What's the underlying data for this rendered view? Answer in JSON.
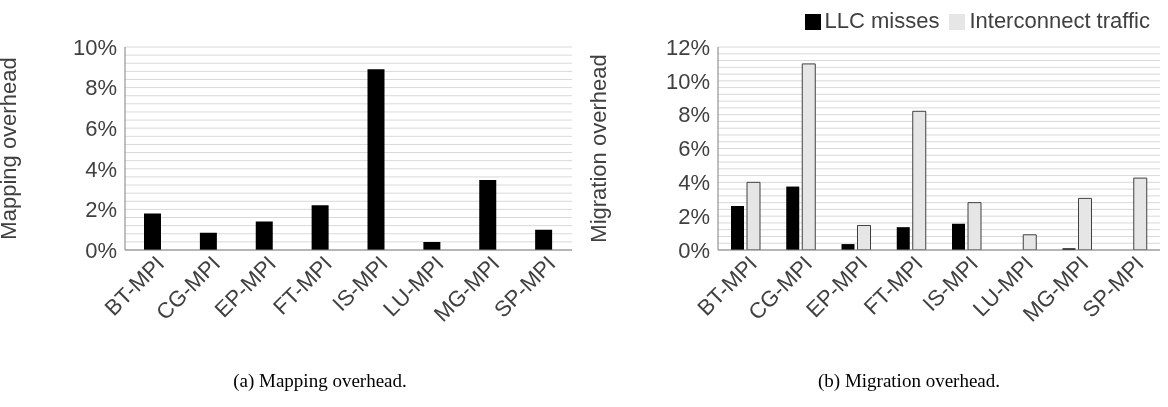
{
  "chart_data": [
    {
      "type": "bar",
      "ylabel": "Mapping overhead",
      "categories": [
        "BT-MPI",
        "CG-MPI",
        "EP-MPI",
        "FT-MPI",
        "IS-MPI",
        "LU-MPI",
        "MG-MPI",
        "SP-MPI"
      ],
      "values": [
        1.8,
        0.85,
        1.4,
        2.2,
        8.9,
        0.4,
        3.45,
        1.0
      ],
      "color": "#000000",
      "ylim": [
        0,
        10
      ],
      "yticks": [
        {
          "value": 0,
          "label": "0%"
        },
        {
          "value": 0.4,
          "label": null
        },
        {
          "value": 0.8,
          "label": null
        },
        {
          "value": 1.2,
          "label": null
        },
        {
          "value": 1.6,
          "label": null
        },
        {
          "value": 2,
          "label": "2%"
        },
        {
          "value": 2.4,
          "label": null
        },
        {
          "value": 2.8,
          "label": null
        },
        {
          "value": 3.2,
          "label": null
        },
        {
          "value": 3.6,
          "label": null
        },
        {
          "value": 4,
          "label": "4%"
        },
        {
          "value": 4.4,
          "label": null
        },
        {
          "value": 4.8,
          "label": null
        },
        {
          "value": 5.2,
          "label": null
        },
        {
          "value": 5.6,
          "label": null
        },
        {
          "value": 6,
          "label": "6%"
        },
        {
          "value": 6.4,
          "label": null
        },
        {
          "value": 6.8,
          "label": null
        },
        {
          "value": 7.2,
          "label": null
        },
        {
          "value": 7.6,
          "label": null
        },
        {
          "value": 8,
          "label": "8%"
        },
        {
          "value": 8.4,
          "label": null
        },
        {
          "value": 8.8,
          "label": null
        },
        {
          "value": 9.2,
          "label": null
        },
        {
          "value": 9.6,
          "label": null
        },
        {
          "value": 10,
          "label": "10%"
        }
      ],
      "grid": "y",
      "legend": false,
      "annotations": [
        "(a) Mapping overhead."
      ]
    },
    {
      "type": "bar",
      "ylabel": "Migration overhead",
      "categories": [
        "BT-MPI",
        "CG-MPI",
        "EP-MPI",
        "FT-MPI",
        "IS-MPI",
        "LU-MPI",
        "MG-MPI",
        "SP-MPI"
      ],
      "series": [
        {
          "name": "LLC misses",
          "color": "#000000",
          "values": [
            2.6,
            3.75,
            0.35,
            1.35,
            1.55,
            0,
            0.1,
            0
          ]
        },
        {
          "name": "Interconnect traffic",
          "color": "#e6e6e6",
          "values": [
            4.0,
            11.0,
            1.45,
            8.2,
            2.8,
            0.9,
            3.05,
            4.25
          ]
        }
      ],
      "ylim": [
        0,
        12
      ],
      "yticks": [
        {
          "value": 0,
          "label": "0%"
        },
        {
          "value": 0.4,
          "label": null
        },
        {
          "value": 0.8,
          "label": null
        },
        {
          "value": 1.2,
          "label": null
        },
        {
          "value": 1.6,
          "label": null
        },
        {
          "value": 2,
          "label": "2%"
        },
        {
          "value": 2.4,
          "label": null
        },
        {
          "value": 2.8,
          "label": null
        },
        {
          "value": 3.2,
          "label": null
        },
        {
          "value": 3.6,
          "label": null
        },
        {
          "value": 4,
          "label": "4%"
        },
        {
          "value": 4.4,
          "label": null
        },
        {
          "value": 4.8,
          "label": null
        },
        {
          "value": 5.2,
          "label": null
        },
        {
          "value": 5.6,
          "label": null
        },
        {
          "value": 6,
          "label": "6%"
        },
        {
          "value": 6.4,
          "label": null
        },
        {
          "value": 6.8,
          "label": null
        },
        {
          "value": 7.2,
          "label": null
        },
        {
          "value": 7.6,
          "label": null
        },
        {
          "value": 8,
          "label": "8%"
        },
        {
          "value": 8.4,
          "label": null
        },
        {
          "value": 8.8,
          "label": null
        },
        {
          "value": 9.2,
          "label": null
        },
        {
          "value": 9.6,
          "label": null
        },
        {
          "value": 10,
          "label": "10%"
        },
        {
          "value": 10.4,
          "label": null
        },
        {
          "value": 10.8,
          "label": null
        },
        {
          "value": 11.2,
          "label": null
        },
        {
          "value": 11.6,
          "label": null
        },
        {
          "value": 12,
          "label": "12%"
        }
      ],
      "grid": "y",
      "legend": "top right",
      "annotations": [
        "(b) Migration overhead."
      ]
    }
  ]
}
